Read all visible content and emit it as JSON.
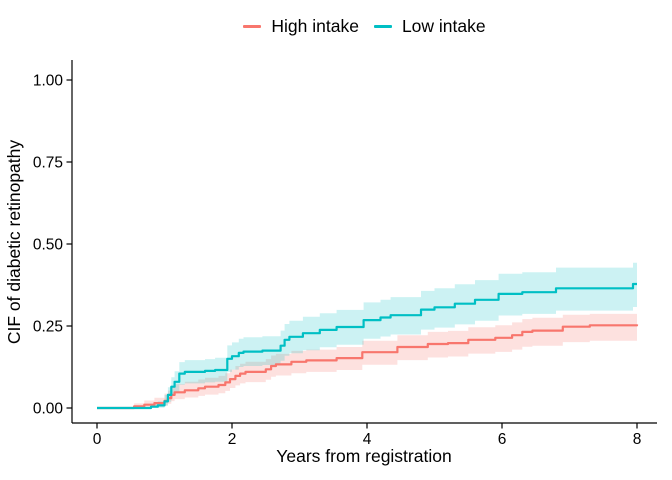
{
  "legend": {
    "items": [
      {
        "label": "High intake",
        "color": "#F8766D"
      },
      {
        "label": "Low intake",
        "color": "#00BFC4"
      }
    ]
  },
  "chart_data": {
    "type": "line",
    "subtype": "step-function-cumulative-incidence-with-confidence-bands",
    "title": "",
    "xlabel": "Years from registration",
    "ylabel": "CIF of diabetic retinopathy",
    "xlim": [
      0,
      8
    ],
    "ylim": [
      0,
      1.0
    ],
    "xticks": [
      0,
      2,
      4,
      6,
      8
    ],
    "xtick_labels": [
      "0",
      "2",
      "4",
      "6",
      "8"
    ],
    "ytick_values": [
      0,
      0.25,
      0.5,
      0.75,
      1.0
    ],
    "ytick_labels": [
      "0.00",
      "0.25",
      "0.50",
      "0.75",
      "1.00"
    ],
    "grid": false,
    "legend_position": "top-center",
    "axis_color": "#000000",
    "point_format": [
      "x_years",
      "cif",
      "ci_lower",
      "ci_upper"
    ],
    "series": [
      {
        "name": "High intake",
        "color": "#F8766D",
        "band_color": "rgba(248,118,109,0.22)",
        "points": [
          [
            0,
            0,
            0,
            0
          ],
          [
            0.45,
            0,
            0,
            0
          ],
          [
            0.55,
            0.005,
            0,
            0.014
          ],
          [
            0.7,
            0.01,
            0.002,
            0.023
          ],
          [
            0.85,
            0.015,
            0.004,
            0.031
          ],
          [
            1,
            0.022,
            0.008,
            0.044
          ],
          [
            1.05,
            0.03,
            0.013,
            0.053
          ],
          [
            1.1,
            0.04,
            0.021,
            0.064
          ],
          [
            1.15,
            0.048,
            0.027,
            0.073
          ],
          [
            1.3,
            0.054,
            0.032,
            0.08
          ],
          [
            1.5,
            0.06,
            0.037,
            0.087
          ],
          [
            1.6,
            0.065,
            0.041,
            0.092
          ],
          [
            1.8,
            0.07,
            0.045,
            0.098
          ],
          [
            1.9,
            0.078,
            0.052,
            0.106
          ],
          [
            1.97,
            0.088,
            0.061,
            0.117
          ],
          [
            2.05,
            0.098,
            0.069,
            0.128
          ],
          [
            2.12,
            0.105,
            0.075,
            0.135
          ],
          [
            2.2,
            0.11,
            0.079,
            0.141
          ],
          [
            2.5,
            0.118,
            0.086,
            0.149
          ],
          [
            2.58,
            0.128,
            0.095,
            0.16
          ],
          [
            2.65,
            0.133,
            0.099,
            0.165
          ],
          [
            2.88,
            0.141,
            0.106,
            0.174
          ],
          [
            3.1,
            0.145,
            0.11,
            0.178
          ],
          [
            3.55,
            0.152,
            0.116,
            0.186
          ],
          [
            3.93,
            0.17,
            0.132,
            0.205
          ],
          [
            4.45,
            0.186,
            0.146,
            0.222
          ],
          [
            4.9,
            0.195,
            0.154,
            0.232
          ],
          [
            5.2,
            0.198,
            0.157,
            0.235
          ],
          [
            5.5,
            0.208,
            0.166,
            0.246
          ],
          [
            5.9,
            0.214,
            0.171,
            0.252
          ],
          [
            6.15,
            0.222,
            0.178,
            0.261
          ],
          [
            6.3,
            0.232,
            0.187,
            0.271
          ],
          [
            6.45,
            0.236,
            0.19,
            0.275
          ],
          [
            6.9,
            0.248,
            0.201,
            0.284
          ],
          [
            7.3,
            0.252,
            0.205,
            0.287
          ],
          [
            8,
            0.255,
            0.208,
            0.29
          ]
        ]
      },
      {
        "name": "Low intake",
        "color": "#00BFC4",
        "band_color": "rgba(0,191,196,0.20)",
        "points": [
          [
            0,
            0,
            0,
            0
          ],
          [
            0.5,
            0,
            0,
            0
          ],
          [
            0.8,
            0.004,
            0,
            0.012
          ],
          [
            0.9,
            0.008,
            0.001,
            0.02
          ],
          [
            1,
            0.02,
            0.007,
            0.04
          ],
          [
            1.05,
            0.04,
            0.019,
            0.063
          ],
          [
            1.1,
            0.065,
            0.038,
            0.094
          ],
          [
            1.15,
            0.08,
            0.05,
            0.112
          ],
          [
            1.22,
            0.105,
            0.071,
            0.14
          ],
          [
            1.3,
            0.11,
            0.075,
            0.146
          ],
          [
            1.6,
            0.113,
            0.078,
            0.149
          ],
          [
            1.75,
            0.116,
            0.08,
            0.153
          ],
          [
            1.93,
            0.15,
            0.11,
            0.191
          ],
          [
            2,
            0.158,
            0.117,
            0.2
          ],
          [
            2.1,
            0.168,
            0.125,
            0.211
          ],
          [
            2.17,
            0.172,
            0.128,
            0.216
          ],
          [
            2.45,
            0.175,
            0.131,
            0.219
          ],
          [
            2.72,
            0.19,
            0.144,
            0.236
          ],
          [
            2.78,
            0.208,
            0.159,
            0.256
          ],
          [
            2.85,
            0.217,
            0.167,
            0.266
          ],
          [
            3.05,
            0.228,
            0.176,
            0.278
          ],
          [
            3.3,
            0.238,
            0.185,
            0.289
          ],
          [
            3.55,
            0.247,
            0.193,
            0.299
          ],
          [
            3.95,
            0.268,
            0.211,
            0.322
          ],
          [
            4.2,
            0.276,
            0.218,
            0.33
          ],
          [
            4.35,
            0.283,
            0.224,
            0.338
          ],
          [
            4.8,
            0.3,
            0.239,
            0.357
          ],
          [
            5,
            0.307,
            0.245,
            0.365
          ],
          [
            5.3,
            0.318,
            0.255,
            0.377
          ],
          [
            5.6,
            0.33,
            0.266,
            0.39
          ],
          [
            5.95,
            0.348,
            0.282,
            0.409
          ],
          [
            6.3,
            0.353,
            0.287,
            0.414
          ],
          [
            6.8,
            0.365,
            0.297,
            0.428
          ],
          [
            7.94,
            0.378,
            0.308,
            0.443
          ],
          [
            8,
            0.378,
            0.308,
            0.443
          ]
        ]
      }
    ]
  }
}
